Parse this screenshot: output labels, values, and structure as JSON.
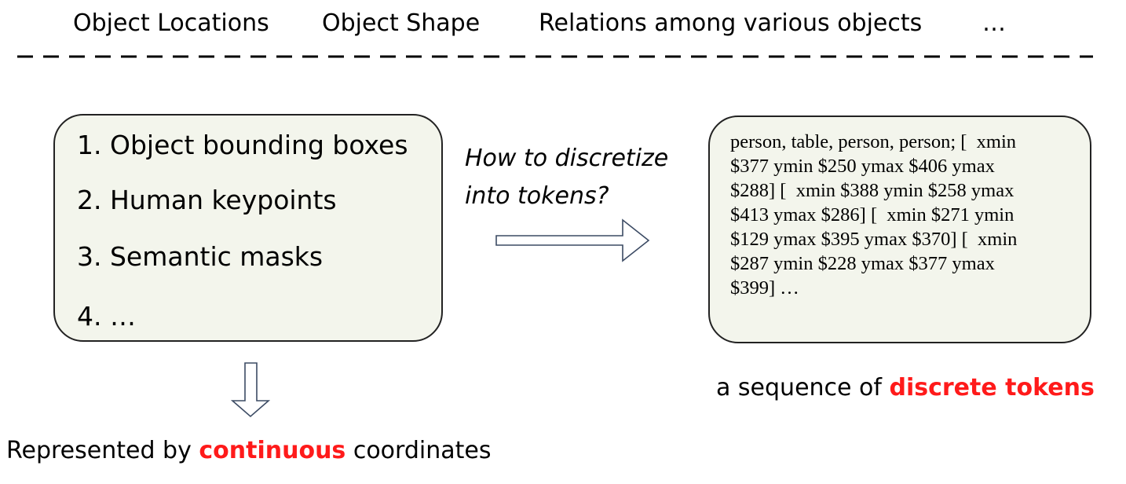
{
  "header": {
    "items": [
      "Object Locations",
      "Object Shape",
      "Relations among various objects",
      "…"
    ]
  },
  "left_box": {
    "items": [
      "1. Object bounding boxes",
      "2. Human keypoints",
      "3. Semantic masks",
      "4. …"
    ]
  },
  "question": {
    "line1": "How to discretize",
    "line2": "into tokens?"
  },
  "right_box": {
    "lines": [
      "person, table, person, person; [  xmin",
      "$377 ymin $250 ymax $406 ymax",
      "$288] [  xmin $388 ymin $258 ymax",
      "$413 ymax $286] [  xmin $271 ymin",
      "$129 ymax $395 ymax $370] [  xmin",
      "$287 ymin $228 ymax $377 ymax",
      "$399] …"
    ]
  },
  "captions": {
    "discrete_prefix": "a sequence of ",
    "discrete_emph": "discrete tokens",
    "continuous_prefix": "Represented by ",
    "continuous_emph": "continuous",
    "continuous_suffix": " coordinates"
  },
  "colors": {
    "emphasis": "#ff1a1a",
    "box_fill": "#f3f5ec",
    "arrow_stroke": "#3c4b64"
  }
}
